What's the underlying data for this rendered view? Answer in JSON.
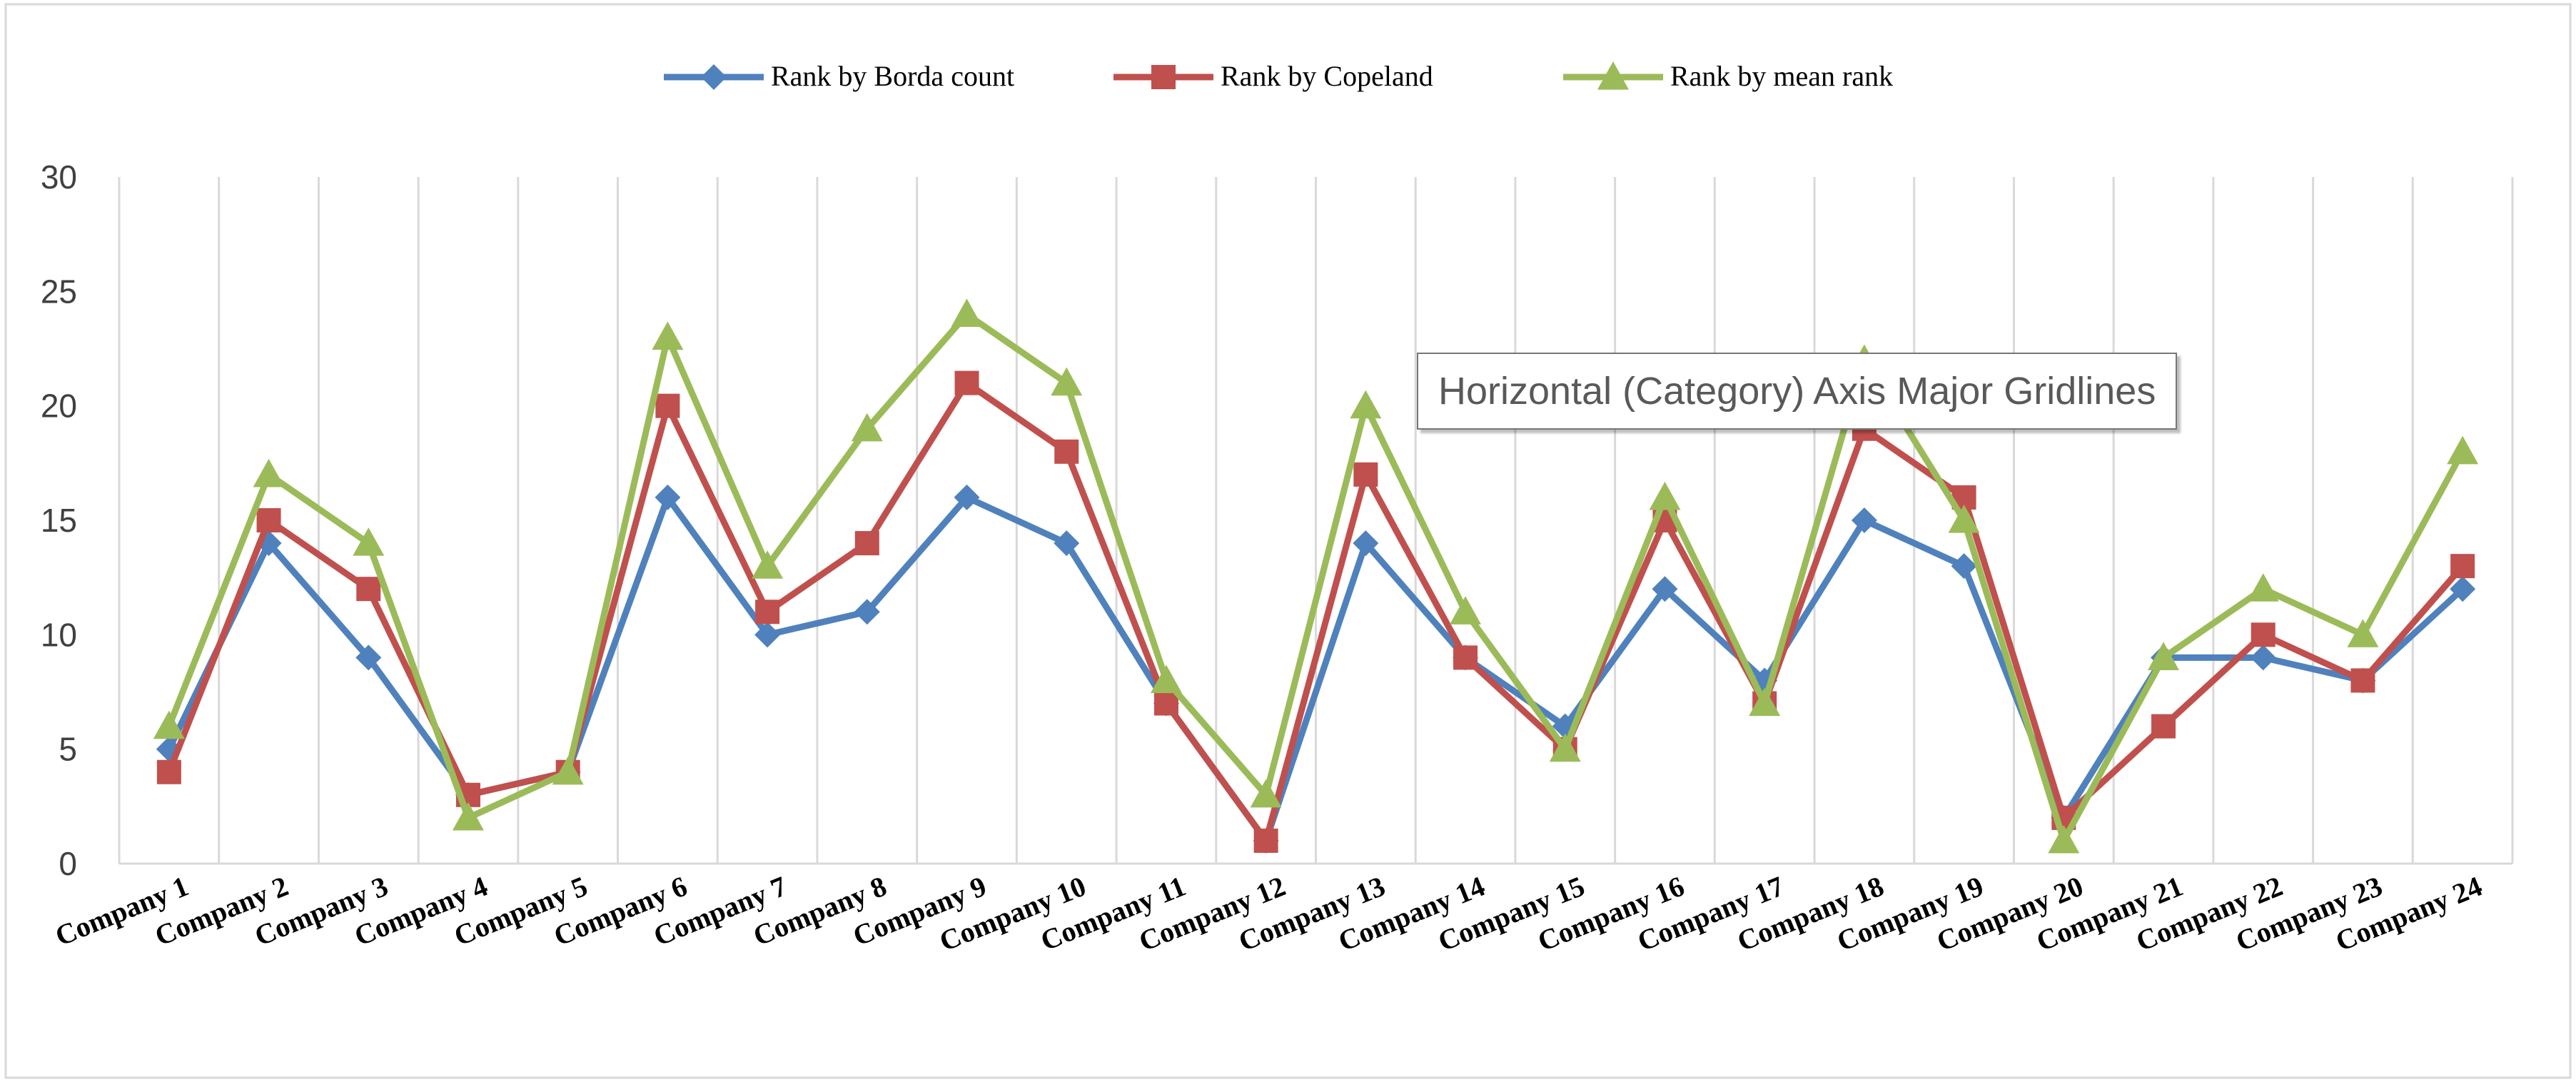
{
  "chart_data": {
    "type": "line",
    "title": "",
    "xlabel": "",
    "ylabel": "",
    "ylim": [
      0,
      30
    ],
    "yticks": [
      0,
      5,
      10,
      15,
      20,
      25,
      30
    ],
    "grid": "vertical category gridlines",
    "legend_position": "top-center",
    "categories": [
      "Company 1",
      "Company 2",
      "Company 3",
      "Company 4",
      "Company 5",
      "Company 6",
      "Company 7",
      "Company 8",
      "Company 9",
      "Company 10",
      "Company 11",
      "Company 12",
      "Company 13",
      "Company 14",
      "Company 15",
      "Company 16",
      "Company 17",
      "Company 18",
      "Company 19",
      "Company 20",
      "Company 21",
      "Company 22",
      "Company 23",
      "Company 24"
    ],
    "series": [
      {
        "name": "Rank by Borda count",
        "color": "#4f81bd",
        "marker": "diamond",
        "values": [
          5,
          14,
          9,
          3,
          4,
          16,
          10,
          11,
          16,
          14,
          7,
          1,
          14,
          9,
          6,
          12,
          8,
          15,
          13,
          2,
          9,
          9,
          8,
          12
        ]
      },
      {
        "name": "Rank by Copeland",
        "color": "#c0504d",
        "marker": "square",
        "values": [
          4,
          15,
          12,
          3,
          4,
          20,
          11,
          14,
          21,
          18,
          7,
          1,
          17,
          9,
          5,
          15,
          7,
          19,
          16,
          2,
          6,
          10,
          8,
          13
        ]
      },
      {
        "name": "Rank by mean rank",
        "color": "#9bbb59",
        "marker": "triangle",
        "values": [
          6,
          17,
          14,
          2,
          4,
          23,
          13,
          19,
          24,
          21,
          8,
          3,
          20,
          11,
          5,
          16,
          7,
          22,
          15,
          1,
          9,
          12,
          10,
          18
        ]
      }
    ]
  },
  "tooltip": {
    "text": "Horizontal (Category) Axis Major Gridlines"
  }
}
